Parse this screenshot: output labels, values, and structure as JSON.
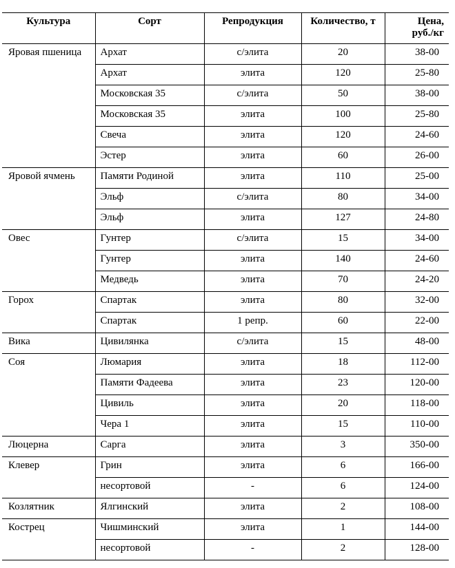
{
  "header": [
    "Культура",
    "Сорт",
    "Репродукция",
    "Количество, т",
    "Цена,\nруб./кг"
  ],
  "groups": [
    {
      "culture": "Яровая пшеница",
      "rows": [
        [
          "Архат",
          "с/элита",
          "20",
          "38-00"
        ],
        [
          "Архат",
          "элита",
          "120",
          "25-80"
        ],
        [
          "Московская 35",
          "с/элита",
          "50",
          "38-00"
        ],
        [
          "Московская 35",
          "элита",
          "100",
          "25-80"
        ],
        [
          "Свеча",
          "элита",
          "120",
          "24-60"
        ],
        [
          "Эстер",
          "элита",
          "60",
          "26-00"
        ]
      ]
    },
    {
      "culture": "Яровой ячмень",
      "rows": [
        [
          "Памяти Родиной",
          "элита",
          "110",
          "25-00"
        ],
        [
          "Эльф",
          "с/элита",
          "80",
          "34-00"
        ],
        [
          "Эльф",
          "элита",
          "127",
          "24-80"
        ]
      ]
    },
    {
      "culture": "Овес",
      "rows": [
        [
          "Гунтер",
          "с/элита",
          "15",
          "34-00"
        ],
        [
          "Гунтер",
          "элита",
          "140",
          "24-60"
        ],
        [
          "Медведь",
          "элита",
          "70",
          "24-20"
        ]
      ]
    },
    {
      "culture": "Горох",
      "rows": [
        [
          "Спартак",
          "элита",
          "80",
          "32-00"
        ],
        [
          "Спартак",
          "1 репр.",
          "60",
          "22-00"
        ]
      ]
    },
    {
      "culture": "Вика",
      "rows": [
        [
          "Цивилянка",
          "с/элита",
          "15",
          "48-00"
        ]
      ]
    },
    {
      "culture": "Соя",
      "rows": [
        [
          "Люмария",
          "элита",
          "18",
          "112-00"
        ],
        [
          "Памяти Фадеева",
          "элита",
          "23",
          "120-00"
        ],
        [
          "Цивиль",
          "элита",
          "20",
          "118-00"
        ],
        [
          "Чера 1",
          "элита",
          "15",
          "110-00"
        ]
      ]
    },
    {
      "culture": "Люцерна",
      "rows": [
        [
          "Сарга",
          "элита",
          "3",
          "350-00"
        ]
      ]
    },
    {
      "culture": "Клевер",
      "rows": [
        [
          "Грин",
          "элита",
          "6",
          "166-00"
        ],
        [
          "несортовой",
          "-",
          "6",
          "124-00"
        ]
      ]
    },
    {
      "culture": "Козлятник",
      "rows": [
        [
          "Ялгинский",
          "элита",
          "2",
          "108-00"
        ]
      ]
    },
    {
      "culture": "Кострец",
      "rows": [
        [
          "Чишминский",
          "элита",
          "1",
          "144-00"
        ],
        [
          "несортовой",
          "-",
          "2",
          "128-00"
        ]
      ]
    }
  ]
}
